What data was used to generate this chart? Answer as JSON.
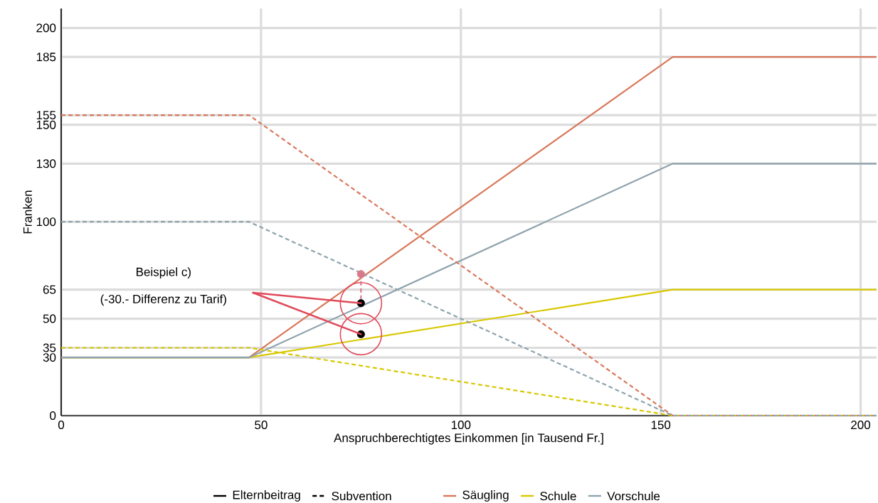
{
  "chart_data": {
    "type": "line",
    "xlabel": "Anspruchberechtigtes Einkommen [in Tausend Fr.]",
    "ylabel": "Franken",
    "xlim": [
      0,
      204
    ],
    "ylim": [
      0,
      210
    ],
    "xticks": [
      0,
      50,
      100,
      150,
      200
    ],
    "yticks": [
      0,
      30,
      35,
      50,
      65,
      100,
      130,
      150,
      155,
      185,
      200
    ],
    "grid": true,
    "legend": "bottom",
    "annotations": [
      "Beispiel c)",
      "(-30.- Differenz zu Tarif)",
      "Elternbeitrag",
      "Subvention"
    ],
    "series": [
      {
        "name": "Säugling",
        "color": "#d9785a",
        "line_style": "solid",
        "x": [
          0,
          47,
          153,
          204
        ],
        "values": [
          30,
          30,
          185,
          185
        ]
      },
      {
        "name": "Schule",
        "color": "#d8c800",
        "line_style": "solid",
        "x": [
          0,
          47,
          153,
          204
        ],
        "values": [
          30,
          30,
          65,
          65
        ]
      },
      {
        "name": "Vorschule",
        "color": "#8fa3ad",
        "line_style": "solid",
        "x": [
          0,
          47,
          153,
          204
        ],
        "values": [
          30,
          30,
          130,
          130
        ]
      },
      {
        "color": "#d9785a",
        "line_style": "dashed",
        "x": [
          0,
          47,
          153,
          204
        ],
        "values": [
          155,
          155,
          0,
          0
        ]
      },
      {
        "color": "#d8c800",
        "line_style": "dashed",
        "x": [
          0,
          47,
          153,
          204
        ],
        "values": [
          35,
          35,
          0,
          0
        ]
      },
      {
        "color": "#8fa3ad",
        "line_style": "dashed",
        "x": [
          0,
          47,
          153,
          204
        ],
        "values": [
          100,
          100,
          0,
          0
        ]
      },
      {
        "type": "scatter",
        "color": "#000000",
        "x": [
          75,
          75
        ],
        "values": [
          58,
          42
        ]
      },
      {
        "type": "scatter",
        "color": "#d87a8a",
        "x": [
          75
        ],
        "values": [
          73
        ]
      }
    ]
  }
}
